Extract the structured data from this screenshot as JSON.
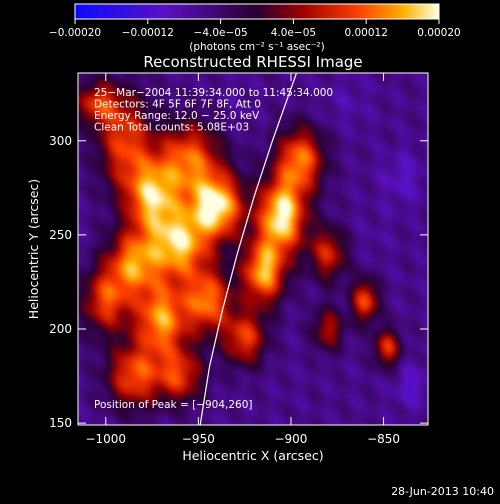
{
  "chart_data": {
    "type": "heatmap",
    "title": "Reconstructed RHESSI Image",
    "xlabel": "Heliocentric X (arcsec)",
    "ylabel": "Heliocentric Y (arcsec)",
    "xlim": [
      -1015,
      -826
    ],
    "ylim": [
      149,
      336
    ],
    "xticks": [
      -1000,
      -950,
      -900,
      -850
    ],
    "xtick_labels": [
      "−1000",
      "−950",
      "−900",
      "−850"
    ],
    "yticks": [
      150,
      200,
      250,
      300
    ],
    "ytick_labels": [
      "150",
      "200",
      "250",
      "300"
    ],
    "colorbar": {
      "range": [
        -0.0002,
        0.0002
      ],
      "ticks": [
        -0.0002,
        -0.00012,
        -4e-05,
        4e-05,
        0.00012,
        0.0002
      ],
      "tick_labels": [
        "−0.00020",
        "−0.00012",
        "−4.0e−05",
        "4.0e−05",
        "0.00012",
        "0.00020"
      ],
      "unit_label": "(photons cm⁻² s⁻¹ asec⁻²)"
    },
    "annotations": [
      "25−Mar−2004 11:39:34.000 to 11:45:34.000",
      "Detectors: 4F 5F 6F 7F 8F, Att 0",
      "Energy Range: 12.0 − 25.0 keV",
      "Clean    Total counts: 5.08E+03"
    ],
    "peak_label": "Position of Peak = [−904,260]",
    "peak": [
      -904,
      260
    ],
    "limb_curve": [
      [
        -949,
        149
      ],
      [
        -944,
        180
      ],
      [
        -937,
        210
      ],
      [
        -929,
        240
      ],
      [
        -920,
        270
      ],
      [
        -910,
        300
      ],
      [
        -897,
        336
      ]
    ],
    "features": [
      {
        "x": -990,
        "y": 300,
        "v": 0.0001,
        "sx": 10,
        "sy": 18
      },
      {
        "x": -975,
        "y": 270,
        "v": 0.00015,
        "sx": 10,
        "sy": 14
      },
      {
        "x": -955,
        "y": 290,
        "v": 0.00012,
        "sx": 12,
        "sy": 14
      },
      {
        "x": -940,
        "y": 265,
        "v": 0.00019,
        "sx": 10,
        "sy": 12
      },
      {
        "x": -960,
        "y": 245,
        "v": 0.00016,
        "sx": 11,
        "sy": 13
      },
      {
        "x": -985,
        "y": 235,
        "v": 0.00013,
        "sx": 10,
        "sy": 12
      },
      {
        "x": -1000,
        "y": 215,
        "v": 0.0001,
        "sx": 9,
        "sy": 12
      },
      {
        "x": -970,
        "y": 205,
        "v": 0.00015,
        "sx": 10,
        "sy": 14
      },
      {
        "x": -945,
        "y": 215,
        "v": 0.00013,
        "sx": 9,
        "sy": 12
      },
      {
        "x": -985,
        "y": 175,
        "v": 0.00011,
        "sx": 10,
        "sy": 12
      },
      {
        "x": -960,
        "y": 175,
        "v": 9e-05,
        "sx": 9,
        "sy": 10
      },
      {
        "x": -905,
        "y": 260,
        "v": 0.0002,
        "sx": 9,
        "sy": 14
      },
      {
        "x": -915,
        "y": 230,
        "v": 0.00016,
        "sx": 8,
        "sy": 12
      },
      {
        "x": -895,
        "y": 290,
        "v": 0.00013,
        "sx": 9,
        "sy": 12
      },
      {
        "x": -925,
        "y": 195,
        "v": 0.0001,
        "sx": 8,
        "sy": 10
      },
      {
        "x": -880,
        "y": 240,
        "v": 8e-05,
        "sx": 7,
        "sy": 10
      },
      {
        "x": -860,
        "y": 215,
        "v": 0.00011,
        "sx": 5,
        "sy": 8
      },
      {
        "x": -848,
        "y": 190,
        "v": 9e-05,
        "sx": 5,
        "sy": 7
      },
      {
        "x": -880,
        "y": 200,
        "v": 6e-05,
        "sx": 6,
        "sy": 8
      },
      {
        "x": -1005,
        "y": 320,
        "v": 8e-05,
        "sx": 8,
        "sy": 8
      },
      {
        "x": -870,
        "y": 320,
        "v": -8e-05,
        "sx": 10,
        "sy": 10
      },
      {
        "x": -840,
        "y": 280,
        "v": -0.0001,
        "sx": 8,
        "sy": 10
      },
      {
        "x": -835,
        "y": 170,
        "v": -0.00011,
        "sx": 6,
        "sy": 8
      },
      {
        "x": -855,
        "y": 250,
        "v": -7e-05,
        "sx": 8,
        "sy": 10
      },
      {
        "x": -930,
        "y": 320,
        "v": -7e-05,
        "sx": 8,
        "sy": 8
      }
    ]
  },
  "footer": {
    "timestamp": "28-Jun-2013 10:40"
  }
}
